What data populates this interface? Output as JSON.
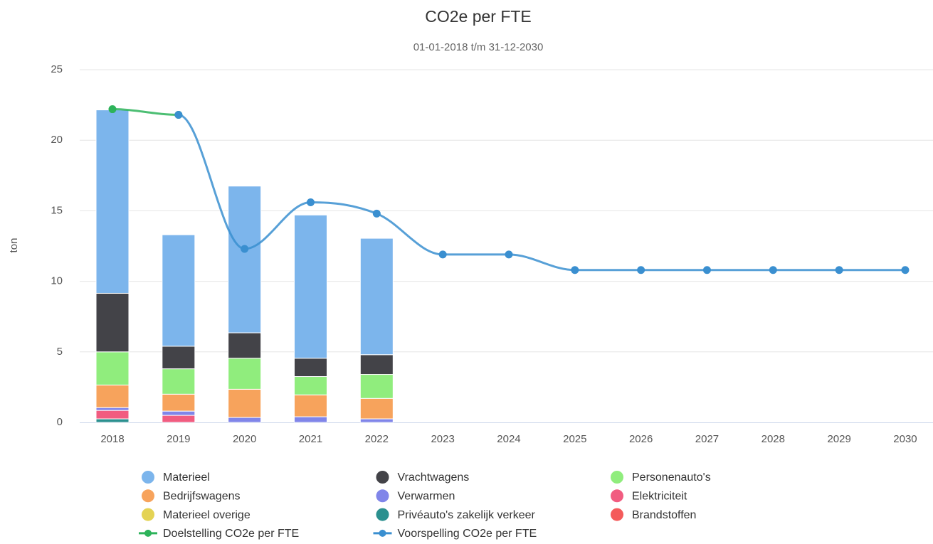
{
  "chart_data": {
    "type": "bar",
    "stacked": true,
    "title": "CO2e per FTE",
    "subtitle": "01-01-2018 t/m 31-12-2030",
    "y_label": "ton",
    "categories": [
      "2018",
      "2019",
      "2020",
      "2021",
      "2022",
      "2023",
      "2024",
      "2025",
      "2026",
      "2027",
      "2028",
      "2029",
      "2030"
    ],
    "ylim": [
      0,
      25
    ],
    "yticks": [
      0,
      5,
      10,
      15,
      20,
      25
    ],
    "grid": true,
    "series": [
      {
        "name": "Materieel",
        "type": "bar",
        "color": "#7cb5ec",
        "values": [
          13.0,
          7.9,
          10.4,
          10.15,
          8.25,
          null,
          null,
          null,
          null,
          null,
          null,
          null,
          null
        ]
      },
      {
        "name": "Vrachtwagens",
        "type": "bar",
        "color": "#434348",
        "values": [
          4.15,
          1.6,
          1.8,
          1.3,
          1.4,
          null,
          null,
          null,
          null,
          null,
          null,
          null,
          null
        ]
      },
      {
        "name": "Personenauto's",
        "type": "bar",
        "color": "#90ed7d",
        "values": [
          2.35,
          1.8,
          2.2,
          1.3,
          1.7,
          null,
          null,
          null,
          null,
          null,
          null,
          null,
          null
        ]
      },
      {
        "name": "Bedrijfswagens",
        "type": "bar",
        "color": "#f7a35c",
        "values": [
          1.6,
          1.2,
          2.0,
          1.55,
          1.45,
          null,
          null,
          null,
          null,
          null,
          null,
          null,
          null
        ]
      },
      {
        "name": "Verwarmen",
        "type": "bar",
        "color": "#8085e9",
        "values": [
          0.2,
          0.3,
          0.35,
          0.4,
          0.25,
          null,
          null,
          null,
          null,
          null,
          null,
          null,
          null
        ]
      },
      {
        "name": "Elektriciteit",
        "type": "bar",
        "color": "#f15c80",
        "values": [
          0.6,
          0.5,
          null,
          null,
          null,
          null,
          null,
          null,
          null,
          null,
          null,
          null,
          null
        ]
      },
      {
        "name": "Materieel overige",
        "type": "bar",
        "color": "#e4d354",
        "values": [
          null,
          null,
          null,
          null,
          null,
          null,
          null,
          null,
          null,
          null,
          null,
          null,
          null
        ]
      },
      {
        "name": "Privéauto's zakelijk verkeer",
        "type": "bar",
        "color": "#2b908f",
        "values": [
          0.25,
          null,
          null,
          null,
          null,
          null,
          null,
          null,
          null,
          null,
          null,
          null,
          null
        ]
      },
      {
        "name": "Brandstoffen",
        "type": "bar",
        "color": "#f45b5b",
        "values": [
          null,
          null,
          null,
          null,
          null,
          null,
          null,
          null,
          null,
          null,
          null,
          null,
          null
        ]
      },
      {
        "name": "Doelstelling CO2e per FTE",
        "type": "line",
        "color": "#2db35a",
        "values": [
          22.2,
          21.8,
          null,
          null,
          null,
          null,
          null,
          null,
          null,
          null,
          null,
          null,
          null
        ]
      },
      {
        "name": "Voorspelling CO2e per FTE",
        "type": "line",
        "color": "#3a8fd0",
        "values": [
          null,
          21.8,
          12.3,
          15.6,
          14.8,
          11.9,
          11.9,
          10.8,
          10.8,
          10.8,
          10.8,
          10.8,
          10.8
        ]
      }
    ]
  }
}
